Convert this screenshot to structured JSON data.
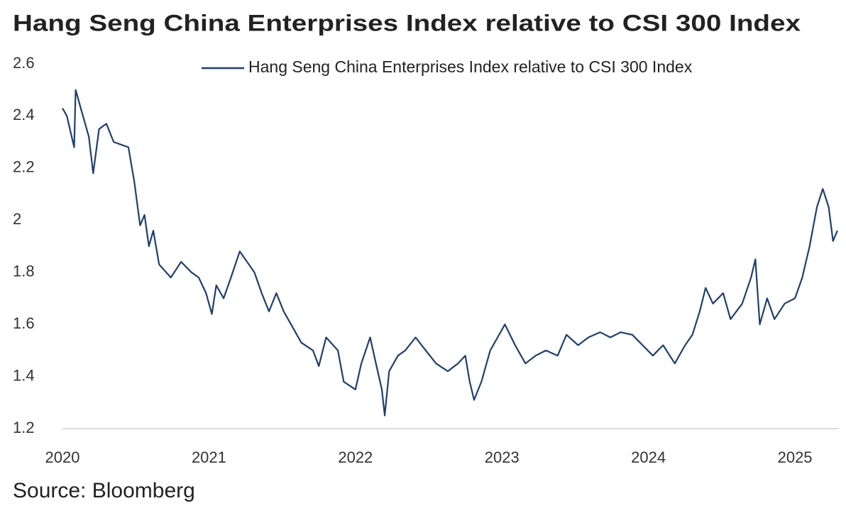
{
  "chart_data": {
    "type": "line",
    "title": "Hang Seng China Enterprises Index relative to CSI 300 Index",
    "source": "Source: Bloomberg",
    "legend": "top-right",
    "grid": false,
    "xlim": [
      2020,
      2025.3
    ],
    "xticks": [
      2020,
      2021,
      2022,
      2023,
      2024,
      2025
    ],
    "ylim": [
      1.2,
      2.6
    ],
    "yticks": [
      1.2,
      1.4,
      1.6,
      1.8,
      2.0,
      2.2,
      2.4,
      2.6
    ],
    "x": [
      2020.0,
      2020.03,
      2020.08,
      2020.09,
      2020.13,
      2020.18,
      2020.21,
      2020.25,
      2020.3,
      2020.35,
      2020.4,
      2020.45,
      2020.49,
      2020.53,
      2020.56,
      2020.59,
      2020.62,
      2020.66,
      2020.74,
      2020.81,
      2020.88,
      2020.93,
      2020.98,
      2021.02,
      2021.05,
      2021.1,
      2021.15,
      2021.21,
      2021.26,
      2021.31,
      2021.36,
      2021.41,
      2021.46,
      2021.51,
      2021.56,
      2021.63,
      2021.71,
      2021.75,
      2021.8,
      2021.88,
      2021.92,
      2022.0,
      2022.04,
      2022.1,
      2022.14,
      2022.18,
      2022.2,
      2022.23,
      2022.29,
      2022.34,
      2022.41,
      2022.48,
      2022.55,
      2022.63,
      2022.7,
      2022.75,
      2022.78,
      2022.81,
      2022.86,
      2022.92,
      2022.97,
      2023.02,
      2023.09,
      2023.16,
      2023.23,
      2023.3,
      2023.38,
      2023.44,
      2023.52,
      2023.59,
      2023.67,
      2023.74,
      2023.81,
      2023.89,
      2023.96,
      2024.03,
      2024.1,
      2024.18,
      2024.25,
      2024.3,
      2024.35,
      2024.39,
      2024.44,
      2024.51,
      2024.56,
      2024.64,
      2024.7,
      2024.73,
      2024.76,
      2024.81,
      2024.86,
      2024.93,
      2025.0,
      2025.05,
      2025.1,
      2025.15,
      2025.19,
      2025.23,
      2025.26,
      2025.29
    ],
    "series": [
      {
        "name": "Hang Seng China Enterprises Index relative to CSI 300 Index",
        "color": "#1f3f6e",
        "values": [
          2.43,
          2.4,
          2.28,
          2.5,
          2.42,
          2.32,
          2.18,
          2.35,
          2.37,
          2.3,
          2.29,
          2.28,
          2.15,
          1.98,
          2.02,
          1.9,
          1.96,
          1.83,
          1.78,
          1.84,
          1.8,
          1.78,
          1.72,
          1.64,
          1.75,
          1.7,
          1.78,
          1.88,
          1.84,
          1.8,
          1.72,
          1.65,
          1.72,
          1.65,
          1.6,
          1.53,
          1.5,
          1.44,
          1.55,
          1.5,
          1.38,
          1.35,
          1.45,
          1.55,
          1.45,
          1.35,
          1.25,
          1.42,
          1.48,
          1.5,
          1.55,
          1.5,
          1.45,
          1.42,
          1.45,
          1.48,
          1.38,
          1.31,
          1.38,
          1.5,
          1.55,
          1.6,
          1.52,
          1.45,
          1.48,
          1.5,
          1.48,
          1.56,
          1.52,
          1.55,
          1.57,
          1.55,
          1.57,
          1.56,
          1.52,
          1.48,
          1.52,
          1.45,
          1.52,
          1.56,
          1.65,
          1.74,
          1.68,
          1.72,
          1.62,
          1.68,
          1.78,
          1.85,
          1.6,
          1.7,
          1.62,
          1.68,
          1.7,
          1.78,
          1.9,
          2.05,
          2.12,
          2.05,
          1.92,
          1.96
        ]
      }
    ]
  }
}
